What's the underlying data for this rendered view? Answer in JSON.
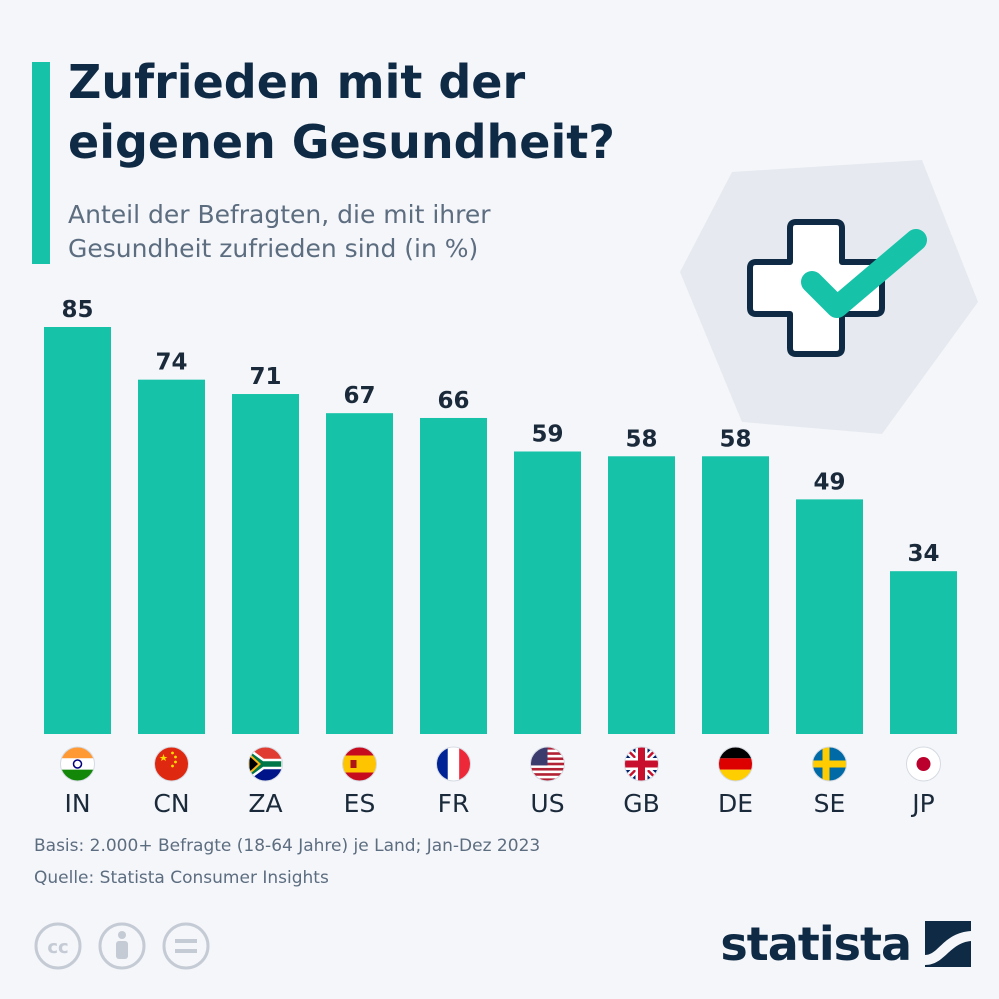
{
  "header": {
    "title_lines": [
      "Zufrieden mit der",
      "eigenen Gesundheit?"
    ],
    "subtitle_lines": [
      "Anteil der Befragten, die mit ihrer",
      "Gesundheit zufrieden sind (in %)"
    ]
  },
  "chart_data": {
    "type": "bar",
    "categories": [
      "IN",
      "CN",
      "ZA",
      "ES",
      "FR",
      "US",
      "GB",
      "DE",
      "SE",
      "JP"
    ],
    "values": [
      85,
      74,
      71,
      67,
      66,
      59,
      58,
      58,
      49,
      34
    ],
    "flags": [
      "india-flag-icon",
      "china-flag-icon",
      "south-africa-flag-icon",
      "spain-flag-icon",
      "france-flag-icon",
      "usa-flag-icon",
      "uk-flag-icon",
      "germany-flag-icon",
      "sweden-flag-icon",
      "japan-flag-icon"
    ],
    "ylim": [
      0,
      85
    ],
    "grid": false,
    "bar_color": "#16c2a8",
    "title": "Zufrieden mit der eigenen Gesundheit?"
  },
  "footer": {
    "basis": "Basis: 2.000+ Befragte (18-64 Jahre) je Land; Jan-Dez 2023",
    "source": "Quelle: Statista Consumer Insights",
    "brand": "statista"
  },
  "colors": {
    "accent": "#16c2a8",
    "title": "#0f2a44",
    "text_muted": "#5d6d80",
    "background": "#f4f6fa"
  }
}
